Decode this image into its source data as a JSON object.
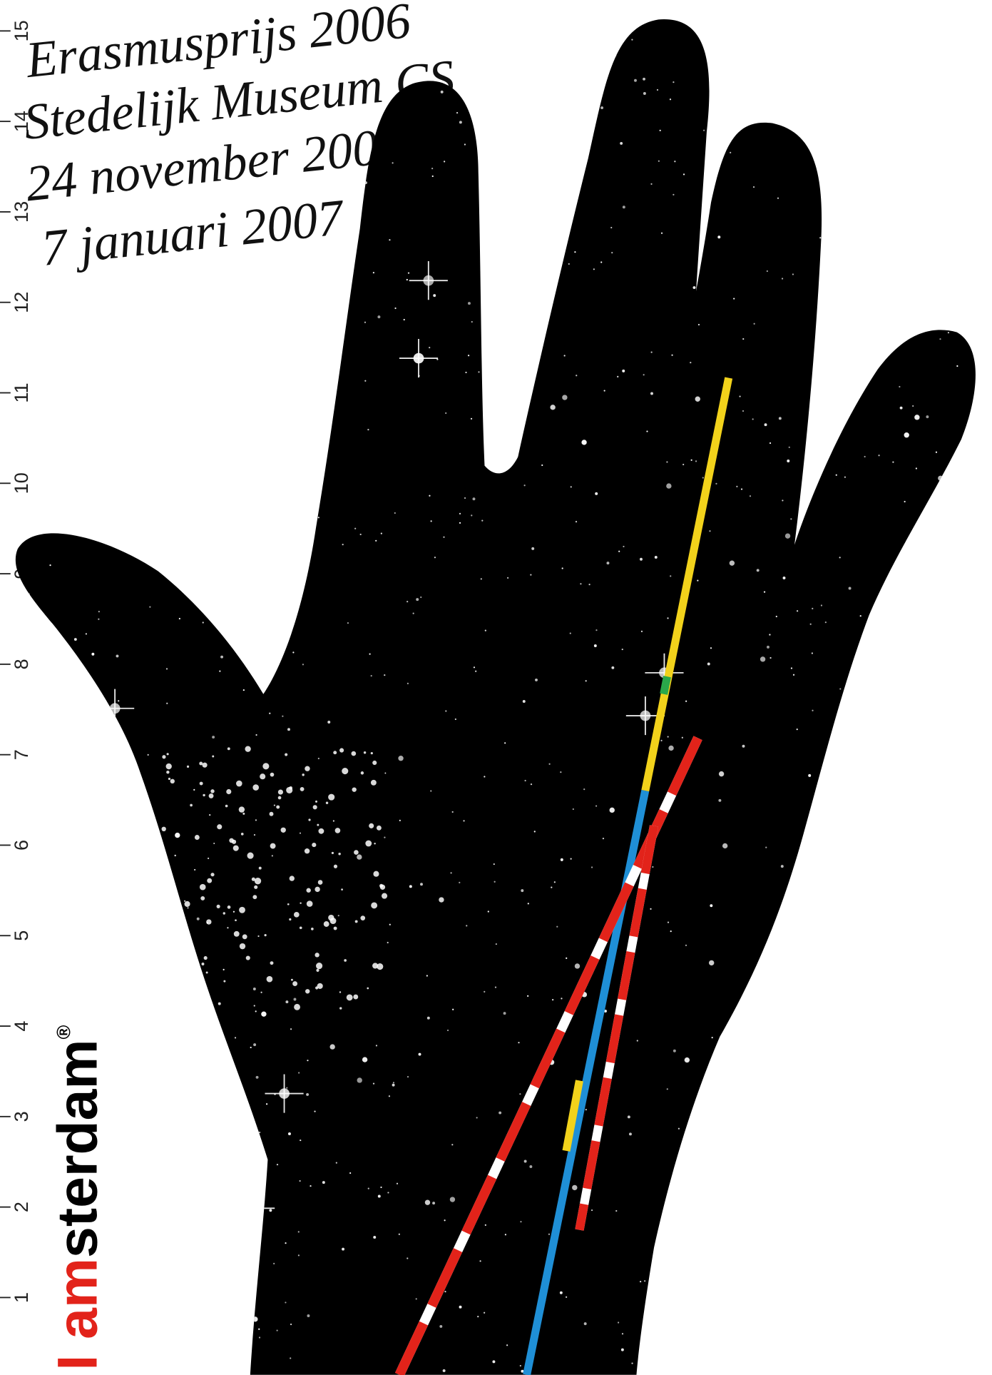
{
  "poster": {
    "handwriting": [
      "Erasmusprijs 2006",
      "Stedelijk Museum CS",
      "24 november 2006",
      "7 januari 2007"
    ],
    "ruler": [
      "15",
      "14",
      "13",
      "12",
      "11",
      "10",
      "9",
      "8",
      "7",
      "6",
      "5",
      "4",
      "3",
      "2",
      "1"
    ],
    "brand": {
      "prefix": "I am",
      "suffix": "sterdam",
      "mark": "®"
    }
  }
}
